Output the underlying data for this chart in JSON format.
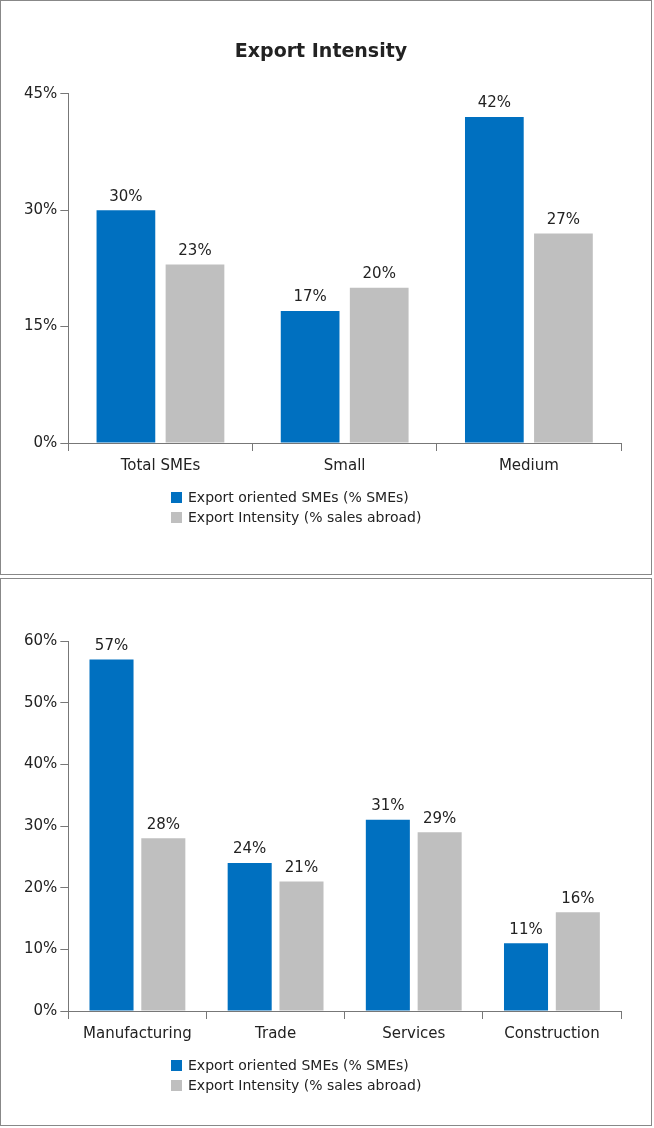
{
  "chart_data": [
    {
      "type": "bar",
      "title": "Export Intensity",
      "categories": [
        "Total SMEs",
        "Small",
        "Medium"
      ],
      "series": [
        {
          "name": "Export oriented SMEs (% SMEs)",
          "color": "#0070c0",
          "values": [
            30,
            17,
            42
          ],
          "value_labels": [
            "30%",
            "17%",
            "42%"
          ]
        },
        {
          "name": "Export Intensity (% sales abroad)",
          "color": "#bfbfbf",
          "values": [
            23,
            20,
            27
          ],
          "value_labels": [
            "23%",
            "20%",
            "27%"
          ]
        }
      ],
      "ylim": [
        0,
        45
      ],
      "yticks": [
        {
          "value": 0,
          "label": "0%"
        },
        {
          "value": 15,
          "label": "15%"
        },
        {
          "value": 30,
          "label": "30%"
        },
        {
          "value": 45,
          "label": "45%"
        }
      ],
      "grid": false,
      "legend": "bottom"
    },
    {
      "type": "bar",
      "categories": [
        "Manufacturing",
        "Trade",
        "Services",
        "Construction"
      ],
      "series": [
        {
          "name": "Export oriented SMEs (% SMEs)",
          "color": "#0070c0",
          "values": [
            57,
            24,
            31,
            11
          ],
          "value_labels": [
            "57%",
            "24%",
            "31%",
            "11%"
          ]
        },
        {
          "name": "Export Intensity (% sales abroad)",
          "color": "#bfbfbf",
          "values": [
            28,
            21,
            29,
            16
          ],
          "value_labels": [
            "28%",
            "21%",
            "29%",
            "16%"
          ]
        }
      ],
      "ylim": [
        0,
        60
      ],
      "yticks": [
        {
          "value": 0,
          "label": "0%"
        },
        {
          "value": 10,
          "label": "10%"
        },
        {
          "value": 20,
          "label": "20%"
        },
        {
          "value": 30,
          "label": "30%"
        },
        {
          "value": 40,
          "label": "40%"
        },
        {
          "value": 50,
          "label": "50%"
        },
        {
          "value": 60,
          "label": "60%"
        }
      ],
      "grid": false,
      "legend": "bottom"
    }
  ]
}
